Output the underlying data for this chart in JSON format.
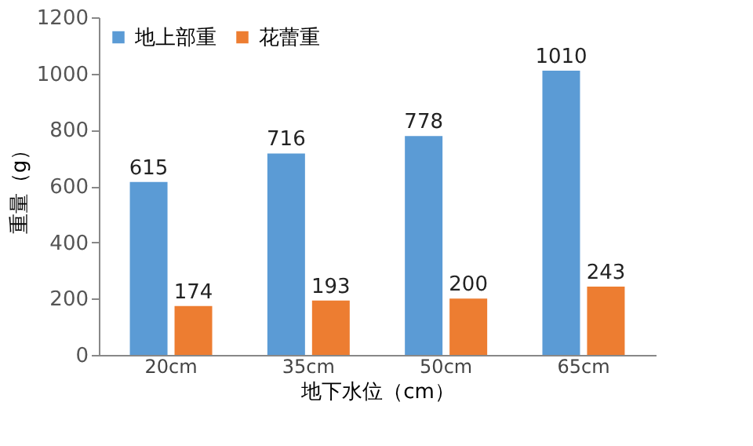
{
  "chart_data": {
    "type": "bar",
    "xlabel": "地下水位（cm）",
    "ylabel": "重量（g）",
    "categories": [
      "20cm",
      "35cm",
      "50cm",
      "65cm"
    ],
    "series": [
      {
        "name": "地上部重",
        "color": "#5b9bd5",
        "values": [
          615,
          716,
          778,
          1010
        ]
      },
      {
        "name": "花蕾重",
        "color": "#ed7d31",
        "values": [
          174,
          193,
          200,
          243
        ]
      }
    ],
    "ylim": [
      0,
      1200
    ],
    "yticks": [
      0,
      200,
      400,
      600,
      800,
      1000,
      1200
    ],
    "data_labels": true,
    "grid": false,
    "legend": "top left"
  }
}
